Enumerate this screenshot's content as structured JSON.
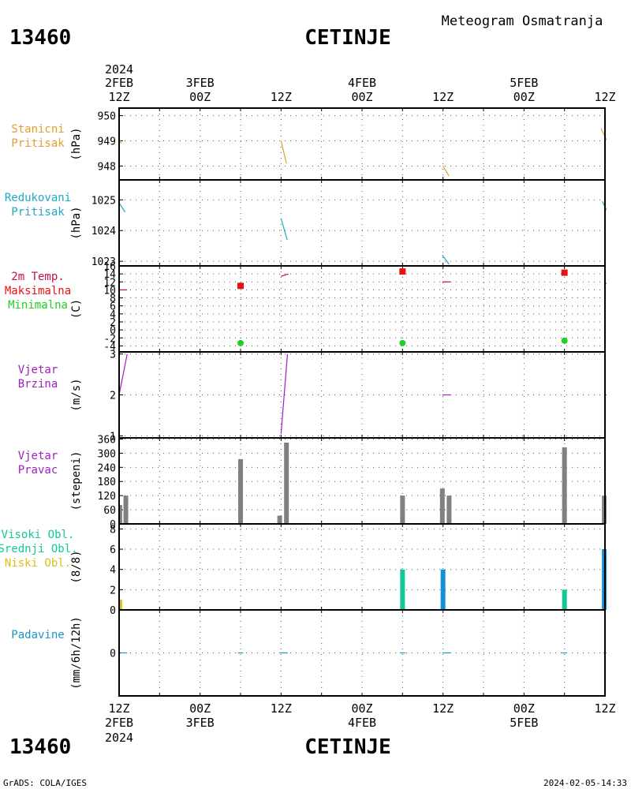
{
  "header": {
    "station_id": "13460",
    "station_name": "CETINJE",
    "chart_title": "Meteogram Osmatranja"
  },
  "time_axis": {
    "top_year": "2024",
    "bottom_year": "2024",
    "labels": [
      {
        "day": "2FEB",
        "hour": "12Z"
      },
      {
        "day": "3FEB",
        "hour": "00Z"
      },
      {
        "day": "",
        "hour": "12Z"
      },
      {
        "day": "4FEB",
        "hour": "00Z"
      },
      {
        "day": "",
        "hour": "12Z"
      },
      {
        "day": "5FEB",
        "hour": "00Z"
      },
      {
        "day": "",
        "hour": "12Z"
      }
    ]
  },
  "footer": {
    "left": "GrADS: COLA/IGES",
    "right": "2024-02-05-14:33"
  },
  "colors": {
    "station_pressure": "#e0a030",
    "reduced_pressure": "#20a8c8",
    "temperature": "#c0104a",
    "maximum": "#e81010",
    "minimum": "#20d020",
    "wind_speed": "#a020c0",
    "wind_direction": "#808080",
    "high_clouds": "#10c898",
    "middle_clouds": "#1090d8",
    "low_clouds": "#d8c020",
    "precipitation": "#1898c8"
  },
  "chart_data": [
    {
      "id": "station-pressure",
      "type": "line",
      "labels": [
        "Stanicni",
        "Pritisak"
      ],
      "ylabel": "(hPa)",
      "yticks": [
        948,
        949,
        950
      ],
      "ylim": [
        947.45,
        950.3
      ],
      "series": [
        {
          "segments": [
            [
              [
                0.0,
                949.1
              ],
              [
                0.3,
                948.9
              ]
            ],
            [
              [
                24.0,
                949.0
              ],
              [
                24.8,
                948.1
              ]
            ],
            [
              [
                48.0,
                948.0
              ],
              [
                48.9,
                947.6
              ]
            ],
            [
              [
                71.4,
                949.5
              ],
              [
                72.3,
                949.0
              ]
            ]
          ]
        }
      ]
    },
    {
      "id": "reduced-pressure",
      "type": "line",
      "labels": [
        "Redukovani",
        "Pritisak"
      ],
      "ylabel": "(hPa)",
      "yticks": [
        1023,
        1024,
        1025
      ],
      "ylim": [
        1022.85,
        1025.65
      ],
      "series": [
        {
          "segments": [
            [
              [
                0.0,
                1024.9
              ],
              [
                0.9,
                1024.6
              ]
            ],
            [
              [
                24.0,
                1024.4
              ],
              [
                24.9,
                1023.7
              ]
            ],
            [
              [
                47.9,
                1023.2
              ],
              [
                48.9,
                1022.9
              ]
            ],
            [
              [
                71.6,
                1024.95
              ],
              [
                72.4,
                1024.6
              ]
            ]
          ]
        }
      ]
    },
    {
      "id": "temperature",
      "type": "line",
      "labels": [
        "2m Temp.",
        "Maksimalna",
        "Minimalna"
      ],
      "ylabel": "(C)",
      "yticks": [
        -4,
        -2,
        0,
        2,
        4,
        6,
        8,
        10,
        12,
        14,
        16
      ],
      "ylim": [
        -5.5,
        16
      ],
      "series": [
        {
          "segments": [
            [
              [
                0.0,
                10.0
              ],
              [
                1.2,
                10.0
              ]
            ],
            [
              [
                24.0,
                13.4
              ],
              [
                25.1,
                14.0
              ]
            ],
            [
              [
                47.9,
                12.0
              ],
              [
                49.1,
                12.0
              ]
            ],
            [
              [
                71.9,
                11.6
              ],
              [
                72.6,
                11.8
              ]
            ]
          ]
        }
      ],
      "maximum": [
        [
          18.0,
          11.0
        ],
        [
          42.0,
          14.6
        ],
        [
          66.0,
          14.3
        ]
      ],
      "minimum": [
        [
          18.0,
          -3.3
        ],
        [
          42.0,
          -3.3
        ],
        [
          66.0,
          -2.7
        ]
      ]
    },
    {
      "id": "wind-speed",
      "type": "line",
      "labels": [
        "Vjetar",
        "Brzina"
      ],
      "ylabel": "(m/s)",
      "yticks": [
        1,
        2,
        3
      ],
      "ylim": [
        0.95,
        3.05
      ],
      "series": [
        {
          "segments": [
            [
              [
                0.0,
                2.0
              ],
              [
                1.2,
                3.0
              ]
            ],
            [
              [
                24.0,
                1.05
              ],
              [
                24.95,
                3.0
              ]
            ],
            [
              [
                47.9,
                2.0
              ],
              [
                49.2,
                2.0
              ]
            ],
            [
              [
                71.9,
                2.0
              ],
              [
                72.6,
                2.0
              ]
            ]
          ]
        }
      ]
    },
    {
      "id": "wind-direction",
      "type": "bar",
      "labels": [
        "Vjetar",
        "Pravac"
      ],
      "ylabel": "(stepeni)",
      "yticks": [
        0,
        60,
        120,
        180,
        240,
        300,
        360
      ],
      "ylim": [
        0,
        365
      ],
      "bars": [
        [
          0.1,
          80
        ],
        [
          1.0,
          120
        ],
        [
          18.0,
          275
        ],
        [
          23.8,
          35
        ],
        [
          24.8,
          345
        ],
        [
          42.0,
          120
        ],
        [
          47.9,
          150
        ],
        [
          48.9,
          120
        ],
        [
          66.0,
          325
        ],
        [
          71.9,
          120
        ],
        [
          72.8,
          150
        ]
      ]
    },
    {
      "id": "cloud-cover",
      "type": "bar",
      "labels": [
        "Visoki Obl.",
        "Srednji Obl.",
        "Niski Obl."
      ],
      "ylabel": "(8/8)",
      "yticks": [
        0,
        2,
        4,
        6,
        8
      ],
      "ylim": [
        0,
        8.5
      ],
      "high": [
        [
          42.0,
          4.0
        ],
        [
          66.0,
          2.0
        ]
      ],
      "middle": [
        [
          48.0,
          4.0
        ],
        [
          71.9,
          6.0
        ],
        [
          72.6,
          6.0
        ]
      ],
      "low": [
        [
          0.1,
          1.0
        ]
      ]
    },
    {
      "id": "precipitation",
      "type": "line",
      "labels": [
        "Padavine"
      ],
      "ylabel": "(mm/6h/12h)",
      "yticks": [
        0
      ],
      "ylim": [
        -5,
        5
      ],
      "series": [
        {
          "segments": [
            [
              [
                0.2,
                0.0
              ],
              [
                1.2,
                0.0
              ]
            ],
            [
              [
                17.6,
                0.0
              ],
              [
                18.4,
                0.0
              ]
            ],
            [
              [
                23.8,
                0.0
              ],
              [
                25.0,
                0.0
              ]
            ],
            [
              [
                41.6,
                0.0
              ],
              [
                42.4,
                0.0
              ]
            ],
            [
              [
                47.9,
                0.0
              ],
              [
                49.2,
                0.0
              ]
            ],
            [
              [
                65.6,
                0.0
              ],
              [
                66.4,
                0.0
              ]
            ],
            [
              [
                71.8,
                0.0
              ],
              [
                72.8,
                0.0
              ]
            ]
          ]
        }
      ]
    }
  ]
}
